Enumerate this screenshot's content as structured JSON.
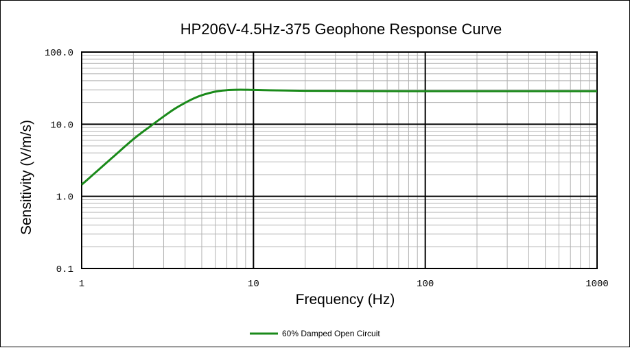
{
  "chart_data": {
    "type": "line",
    "title": "HP206V-4.5Hz-375 Geophone Response Curve",
    "xlabel": "Frequency (Hz)",
    "ylabel": "Sensitivity (V/m/s)",
    "x_scale": "log",
    "y_scale": "log",
    "xlim": [
      1,
      1000
    ],
    "ylim": [
      0.1,
      100
    ],
    "x_ticks": [
      "1",
      "10",
      "100",
      "1000"
    ],
    "y_ticks": [
      "100.0",
      "10.0",
      "1.0",
      "0.1"
    ],
    "grid": true,
    "legend_position": "bottom-center",
    "series": [
      {
        "name": "60% Damped Open Circuit",
        "color": "#1a8a1a",
        "x": [
          1,
          1.5,
          2,
          2.5,
          3,
          3.5,
          4,
          4.5,
          5,
          6,
          7,
          8,
          9,
          10,
          15,
          20,
          30,
          50,
          100,
          200,
          500,
          1000
        ],
        "y": [
          1.45,
          3.4,
          6.2,
          9.3,
          12.8,
          16.5,
          19.8,
          22.8,
          25.2,
          28.3,
          29.6,
          30.0,
          30.0,
          29.8,
          29.3,
          29.0,
          28.9,
          28.8,
          28.7,
          28.7,
          28.7,
          28.7
        ]
      }
    ]
  }
}
